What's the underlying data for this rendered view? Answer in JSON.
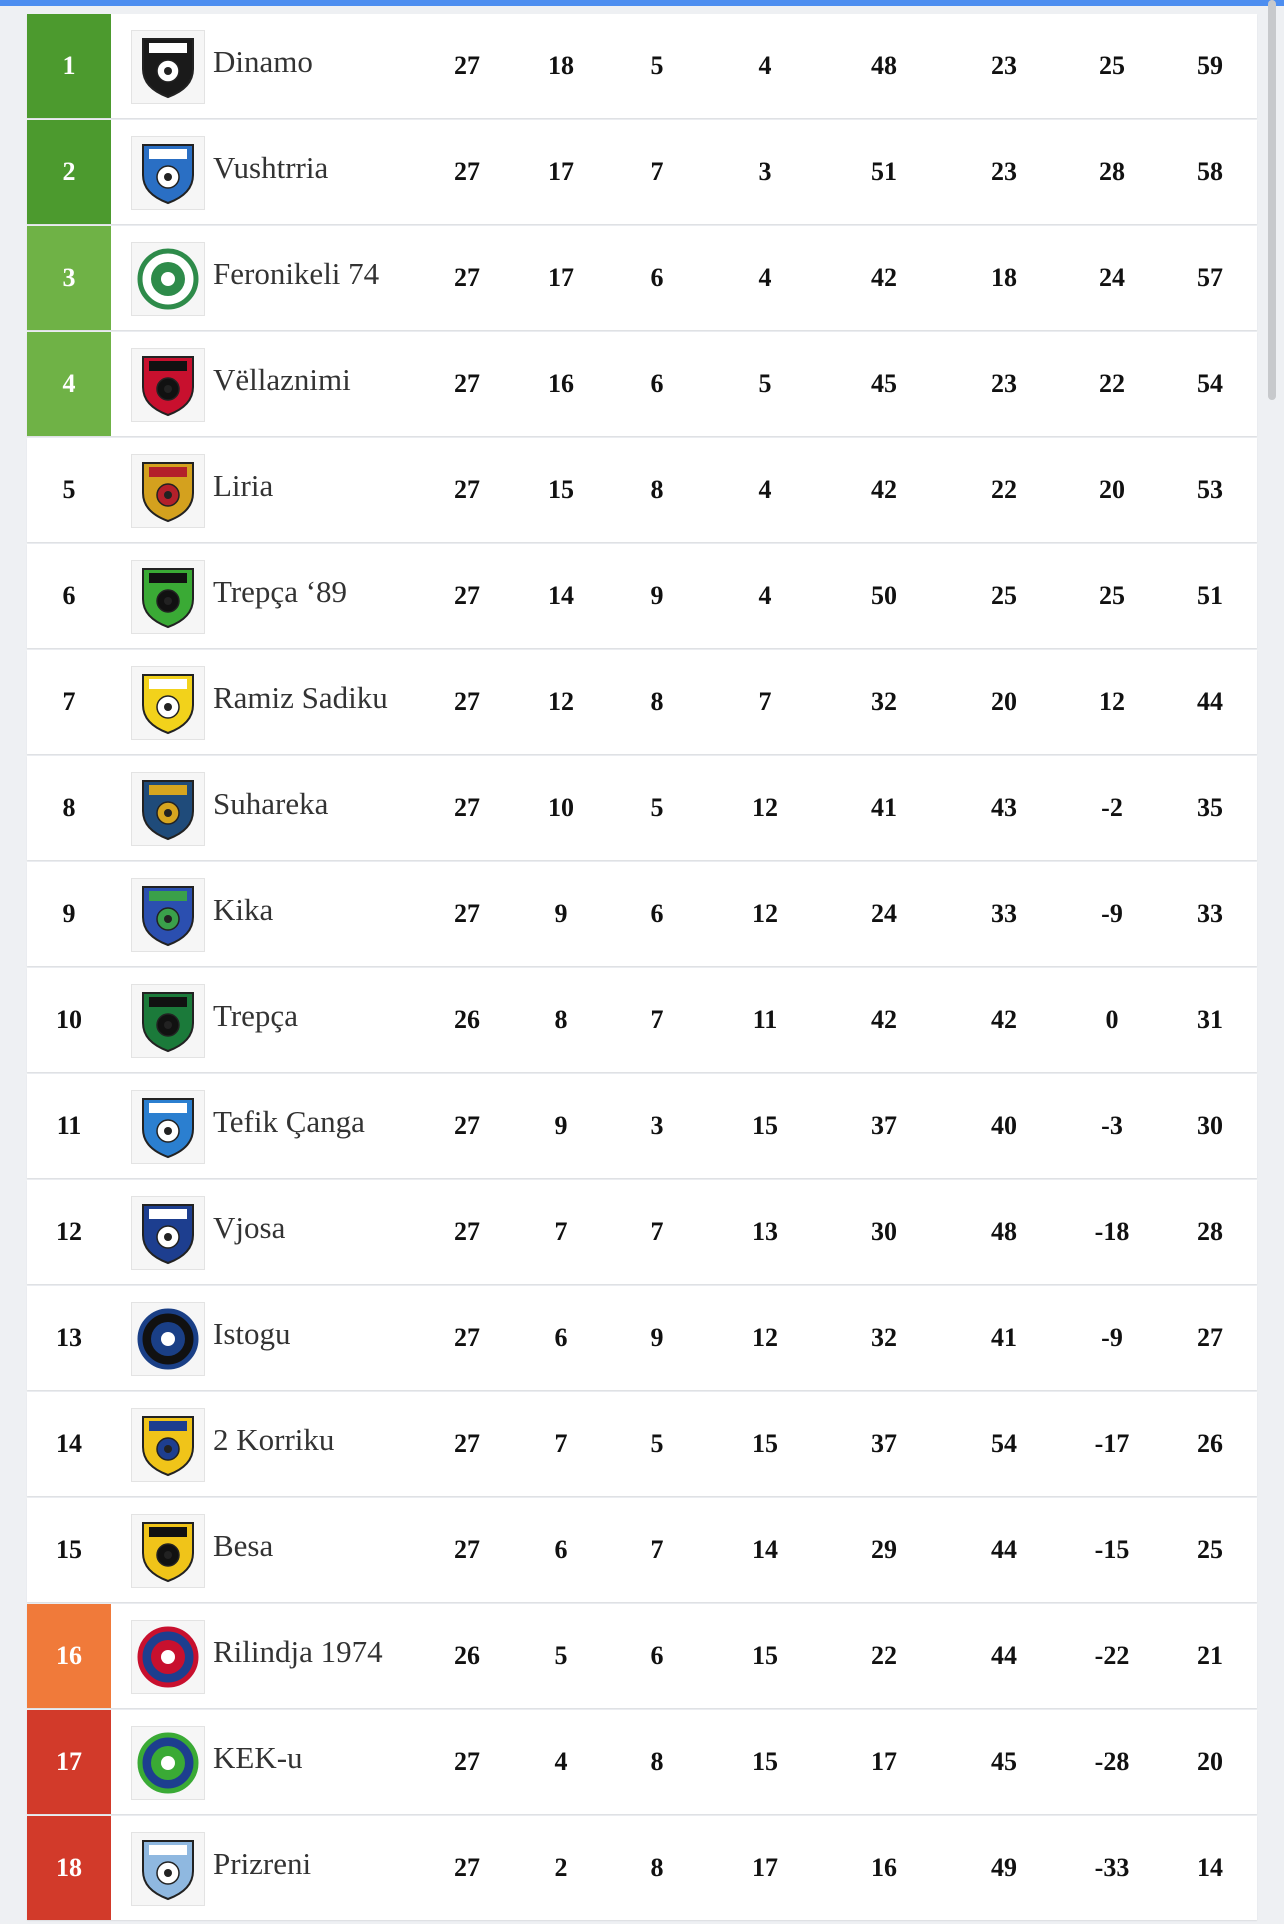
{
  "colors": {
    "champion": "#4c9a2e",
    "europe": "#6fb246",
    "playoff_drop": "#f07a3a",
    "relegation": "#d23a2a"
  },
  "teams": [
    {
      "pos": "1",
      "name": "Dinamo",
      "p": "27",
      "w": "18",
      "d": "5",
      "l": "4",
      "gf": "48",
      "ga": "23",
      "gd": "25",
      "pts": "59",
      "zone": "champion",
      "logo": {
        "shape": "shield",
        "primary": "#1a1a1a",
        "secondary": "#ffffff"
      }
    },
    {
      "pos": "2",
      "name": "Vushtrria",
      "p": "27",
      "w": "17",
      "d": "7",
      "l": "3",
      "gf": "51",
      "ga": "23",
      "gd": "28",
      "pts": "58",
      "zone": "champion",
      "logo": {
        "shape": "shield",
        "primary": "#2a6fc4",
        "secondary": "#ffffff"
      }
    },
    {
      "pos": "3",
      "name": "Feronikeli 74",
      "p": "27",
      "w": "17",
      "d": "6",
      "l": "4",
      "gf": "42",
      "ga": "18",
      "gd": "24",
      "pts": "57",
      "zone": "europe",
      "logo": {
        "shape": "circle",
        "primary": "#2e8b4a",
        "secondary": "#ffffff"
      }
    },
    {
      "pos": "4",
      "name": "Vëllaznimi",
      "p": "27",
      "w": "16",
      "d": "6",
      "l": "5",
      "gf": "45",
      "ga": "23",
      "gd": "22",
      "pts": "54",
      "zone": "europe",
      "logo": {
        "shape": "shield",
        "primary": "#c8102e",
        "secondary": "#111111"
      }
    },
    {
      "pos": "5",
      "name": "Liria",
      "p": "27",
      "w": "15",
      "d": "8",
      "l": "4",
      "gf": "42",
      "ga": "22",
      "gd": "20",
      "pts": "53",
      "zone": "",
      "logo": {
        "shape": "shield",
        "primary": "#d4a11e",
        "secondary": "#b3202a"
      }
    },
    {
      "pos": "6",
      "name": "Trepça ‘89",
      "p": "27",
      "w": "14",
      "d": "9",
      "l": "4",
      "gf": "50",
      "ga": "25",
      "gd": "25",
      "pts": "51",
      "zone": "",
      "logo": {
        "shape": "shield",
        "primary": "#3aaa35",
        "secondary": "#111111"
      }
    },
    {
      "pos": "7",
      "name": "Ramiz Sadiku",
      "p": "27",
      "w": "12",
      "d": "8",
      "l": "7",
      "gf": "32",
      "ga": "20",
      "gd": "12",
      "pts": "44",
      "zone": "",
      "logo": {
        "shape": "shield",
        "primary": "#f2d21b",
        "secondary": "#ffffff"
      }
    },
    {
      "pos": "8",
      "name": "Suhareka",
      "p": "27",
      "w": "10",
      "d": "5",
      "l": "12",
      "gf": "41",
      "ga": "43",
      "gd": "-2",
      "pts": "35",
      "zone": "",
      "logo": {
        "shape": "shield",
        "primary": "#1f4b7a",
        "secondary": "#d6a51f"
      }
    },
    {
      "pos": "9",
      "name": "Kika",
      "p": "27",
      "w": "9",
      "d": "6",
      "l": "12",
      "gf": "24",
      "ga": "33",
      "gd": "-9",
      "pts": "33",
      "zone": "",
      "logo": {
        "shape": "shield",
        "primary": "#2b4fb0",
        "secondary": "#3aa04a"
      }
    },
    {
      "pos": "10",
      "name": "Trepça",
      "p": "26",
      "w": "8",
      "d": "7",
      "l": "11",
      "gf": "42",
      "ga": "42",
      "gd": "0",
      "pts": "31",
      "zone": "",
      "logo": {
        "shape": "shield",
        "primary": "#1b7a3a",
        "secondary": "#111111"
      }
    },
    {
      "pos": "11",
      "name": "Tefik Çanga",
      "p": "27",
      "w": "9",
      "d": "3",
      "l": "15",
      "gf": "37",
      "ga": "40",
      "gd": "-3",
      "pts": "30",
      "zone": "",
      "logo": {
        "shape": "shield",
        "primary": "#2b7fd0",
        "secondary": "#ffffff"
      }
    },
    {
      "pos": "12",
      "name": "Vjosa",
      "p": "27",
      "w": "7",
      "d": "7",
      "l": "13",
      "gf": "30",
      "ga": "48",
      "gd": "-18",
      "pts": "28",
      "zone": "",
      "logo": {
        "shape": "shield",
        "primary": "#1d3e8f",
        "secondary": "#ffffff"
      }
    },
    {
      "pos": "13",
      "name": "Istogu",
      "p": "27",
      "w": "6",
      "d": "9",
      "l": "12",
      "gf": "32",
      "ga": "41",
      "gd": "-9",
      "pts": "27",
      "zone": "",
      "logo": {
        "shape": "circle",
        "primary": "#1a3f86",
        "secondary": "#111111"
      }
    },
    {
      "pos": "14",
      "name": "2 Korriku",
      "p": "27",
      "w": "7",
      "d": "5",
      "l": "15",
      "gf": "37",
      "ga": "54",
      "gd": "-17",
      "pts": "26",
      "zone": "",
      "logo": {
        "shape": "shield",
        "primary": "#f0c419",
        "secondary": "#1d3e8f"
      }
    },
    {
      "pos": "15",
      "name": "Besa",
      "p": "27",
      "w": "6",
      "d": "7",
      "l": "14",
      "gf": "29",
      "ga": "44",
      "gd": "-15",
      "pts": "25",
      "zone": "",
      "logo": {
        "shape": "shield",
        "primary": "#f0c419",
        "secondary": "#111111"
      }
    },
    {
      "pos": "16",
      "name": "Rilindja 1974",
      "p": "26",
      "w": "5",
      "d": "6",
      "l": "15",
      "gf": "22",
      "ga": "44",
      "gd": "-22",
      "pts": "21",
      "zone": "playoff_drop",
      "logo": {
        "shape": "circle",
        "primary": "#c8102e",
        "secondary": "#1d3e8f"
      }
    },
    {
      "pos": "17",
      "name": "KEK-u",
      "p": "27",
      "w": "4",
      "d": "8",
      "l": "15",
      "gf": "17",
      "ga": "45",
      "gd": "-28",
      "pts": "20",
      "zone": "relegation",
      "logo": {
        "shape": "circle",
        "primary": "#3aaa35",
        "secondary": "#1d3e8f"
      }
    },
    {
      "pos": "18",
      "name": "Prizreni",
      "p": "27",
      "w": "2",
      "d": "8",
      "l": "17",
      "gf": "16",
      "ga": "49",
      "gd": "-33",
      "pts": "14",
      "zone": "relegation",
      "logo": {
        "shape": "shield",
        "primary": "#8fb8e0",
        "secondary": "#ffffff"
      }
    }
  ]
}
